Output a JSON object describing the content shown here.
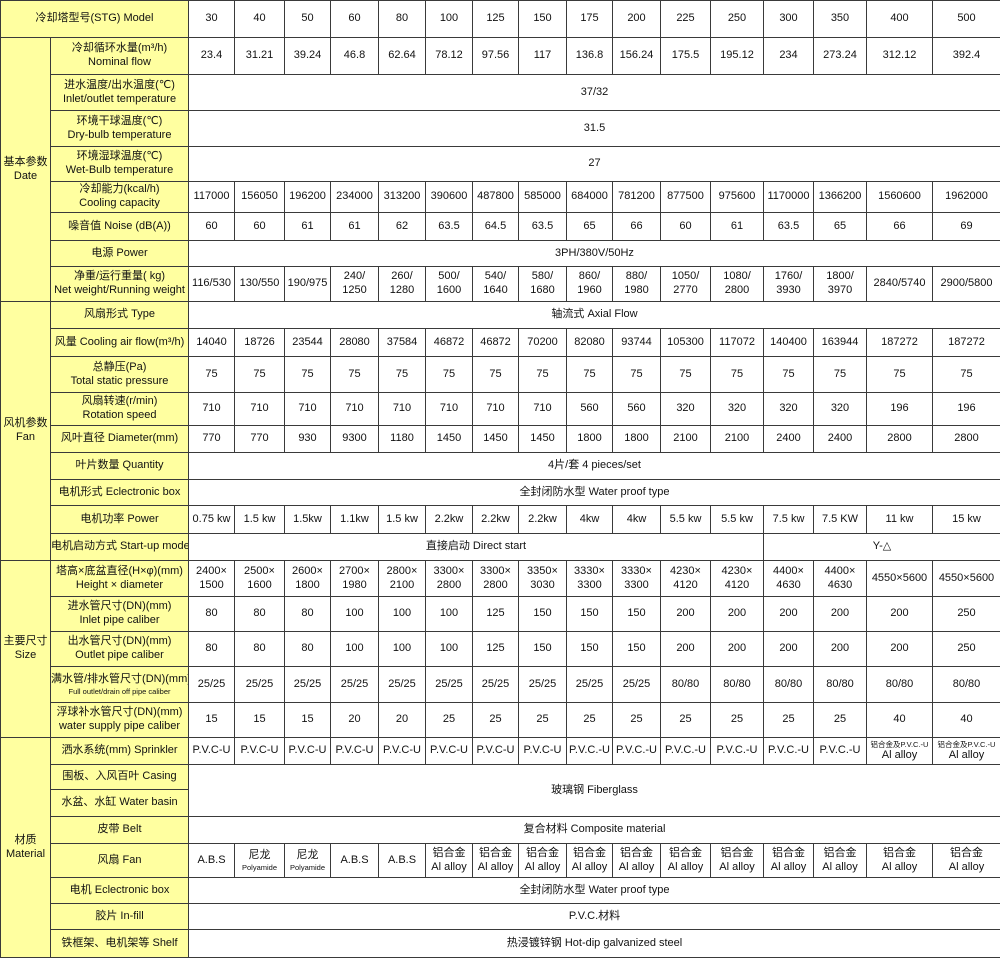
{
  "header": {
    "label": "冷却塔型号(STG) Model",
    "models": [
      "30",
      "40",
      "50",
      "60",
      "80",
      "100",
      "125",
      "150",
      "175",
      "200",
      "225",
      "250",
      "300",
      "350",
      "400",
      "500"
    ]
  },
  "colors": {
    "label_background": "#ffffa0",
    "border": "#3a3a3a"
  },
  "sections": [
    {
      "group": [
        "基本参数",
        "Date"
      ],
      "rows": [
        {
          "label": [
            "冷却循环水量(m³/h)",
            "Nominal flow"
          ],
          "values": [
            "23.4",
            "31.21",
            "39.24",
            "46.8",
            "62.64",
            "78.12",
            "97.56",
            "117",
            "136.8",
            "156.24",
            "175.5",
            "195.12",
            "234",
            "273.24",
            "312.12",
            "392.4"
          ]
        },
        {
          "label": [
            "进水温度/出水温度(℃)",
            "Inlet/outlet temperature"
          ],
          "spans": [
            {
              "text": "37/32",
              "colspan": 16
            }
          ]
        },
        {
          "label": [
            "环境干球温度(℃)",
            "Dry-bulb temperature"
          ],
          "spans": [
            {
              "text": "31.5",
              "colspan": 16
            }
          ]
        },
        {
          "label": [
            "环境湿球温度(℃)",
            "Wet-Bulb temperature"
          ],
          "spans": [
            {
              "text": "27",
              "colspan": 16
            }
          ]
        },
        {
          "label": [
            "冷却能力(kcal/h)",
            "Cooling capacity"
          ],
          "values": [
            "117000",
            "156050",
            "196200",
            "234000",
            "313200",
            "390600",
            "487800",
            "585000",
            "684000",
            "781200",
            "877500",
            "975600",
            "1170000",
            "1366200",
            "1560600",
            "1962000"
          ]
        },
        {
          "label": [
            "噪音值 Noise (dB(A))"
          ],
          "values": [
            "60",
            "60",
            "61",
            "61",
            "62",
            "63.5",
            "64.5",
            "63.5",
            "65",
            "66",
            "60",
            "61",
            "63.5",
            "65",
            "66",
            "69"
          ]
        },
        {
          "label": [
            "电源 Power"
          ],
          "spans": [
            {
              "text": "3PH/380V/50Hz",
              "colspan": 16
            }
          ]
        },
        {
          "label": [
            "净重/运行重量( kg)",
            "Net weight/Running weight"
          ],
          "values": [
            "116/530",
            "130/550",
            "190/975",
            [
              "240/",
              "1250"
            ],
            [
              "260/",
              "1280"
            ],
            [
              "500/",
              "1600"
            ],
            [
              "540/",
              "1640"
            ],
            [
              "580/",
              "1680"
            ],
            [
              "860/",
              "1960"
            ],
            [
              "880/",
              "1980"
            ],
            [
              "1050/",
              "2770"
            ],
            [
              "1080/",
              "2800"
            ],
            [
              "1760/",
              "3930"
            ],
            [
              "1800/",
              "3970"
            ],
            "2840/5740",
            "2900/5800"
          ]
        }
      ]
    },
    {
      "group": [
        "风机参数",
        "Fan"
      ],
      "rows": [
        {
          "label": [
            "风扇形式 Type"
          ],
          "spans": [
            {
              "text": "轴流式 Axial Flow",
              "colspan": 16
            }
          ]
        },
        {
          "label": [
            "风量 Cooling air flow(m³/h)"
          ],
          "values": [
            "14040",
            "18726",
            "23544",
            "28080",
            "37584",
            "46872",
            "46872",
            "70200",
            "82080",
            "93744",
            "105300",
            "117072",
            "140400",
            "163944",
            "187272",
            "187272"
          ]
        },
        {
          "label": [
            "总静压(Pa)",
            "Total static pressure"
          ],
          "values": [
            "75",
            "75",
            "75",
            "75",
            "75",
            "75",
            "75",
            "75",
            "75",
            "75",
            "75",
            "75",
            "75",
            "75",
            "75",
            "75"
          ]
        },
        {
          "label": [
            "风扇转速(r/min)",
            "Rotation speed"
          ],
          "values": [
            "710",
            "710",
            "710",
            "710",
            "710",
            "710",
            "710",
            "710",
            "560",
            "560",
            "320",
            "320",
            "320",
            "320",
            "196",
            "196"
          ]
        },
        {
          "label": [
            "风叶直径 Diameter(mm)"
          ],
          "values": [
            "770",
            "770",
            "930",
            "9300",
            "1180",
            "1450",
            "1450",
            "1450",
            "1800",
            "1800",
            "2100",
            "2100",
            "2400",
            "2400",
            "2800",
            "2800"
          ]
        },
        {
          "label": [
            "叶片数量 Quantity"
          ],
          "spans": [
            {
              "text": "4片/套 4 pieces/set",
              "colspan": 16
            }
          ]
        },
        {
          "label": [
            "电机形式 Eclectronic box"
          ],
          "spans": [
            {
              "text": "全封闭防水型 Water proof type",
              "colspan": 16
            }
          ]
        },
        {
          "label": [
            "电机功率 Power"
          ],
          "values": [
            "0.75 kw",
            "1.5 kw",
            "1.5kw",
            "1.1kw",
            "1.5 kw",
            "2.2kw",
            "2.2kw",
            "2.2kw",
            "4kw",
            "4kw",
            "5.5 kw",
            "5.5 kw",
            "7.5 kw",
            "7.5 KW",
            "11 kw",
            "15 kw"
          ]
        },
        {
          "label": [
            "电机启动方式 Start-up mode"
          ],
          "spans": [
            {
              "text": "直接启动 Direct start",
              "colspan": 12
            },
            {
              "text": "Y-△",
              "colspan": 4
            }
          ]
        }
      ]
    },
    {
      "group": [
        "主要尺寸",
        "Size"
      ],
      "rows": [
        {
          "label": [
            "塔高×底盆直径(H×φ)(mm)",
            "Height × diameter"
          ],
          "values": [
            [
              "2400×",
              "1500"
            ],
            [
              "2500×",
              "1600"
            ],
            [
              "2600×",
              "1800"
            ],
            [
              "2700×",
              "1980"
            ],
            [
              "2800×",
              "2100"
            ],
            [
              "3300×",
              "2800"
            ],
            [
              "3300×",
              "2800"
            ],
            [
              "3350×",
              "3030"
            ],
            [
              "3330×",
              "3300"
            ],
            [
              "3330×",
              "3300"
            ],
            [
              "4230×",
              "4120"
            ],
            [
              "4230×",
              "4120"
            ],
            [
              "4400×",
              "4630"
            ],
            [
              "4400×",
              "4630"
            ],
            "4550×5600",
            "4550×5600"
          ]
        },
        {
          "label": [
            "进水管尺寸(DN)(mm)",
            "Inlet pipe caliber"
          ],
          "values": [
            "80",
            "80",
            "80",
            "100",
            "100",
            "100",
            "125",
            "150",
            "150",
            "150",
            "200",
            "200",
            "200",
            "200",
            "200",
            "250"
          ]
        },
        {
          "label": [
            "出水管尺寸(DN)(mm)",
            "Outlet pipe caliber"
          ],
          "values": [
            "80",
            "80",
            "80",
            "100",
            "100",
            "100",
            "125",
            "150",
            "150",
            "150",
            "200",
            "200",
            "200",
            "200",
            "200",
            "250"
          ]
        },
        {
          "label": [
            "满水管/排水管尺寸(DN)(mm)",
            "Full outlet/drain off pipe caliber"
          ],
          "values": [
            "25/25",
            "25/25",
            "25/25",
            "25/25",
            "25/25",
            "25/25",
            "25/25",
            "25/25",
            "25/25",
            "25/25",
            "80/80",
            "80/80",
            "80/80",
            "80/80",
            "80/80",
            "80/80"
          ]
        },
        {
          "label": [
            "浮球补水管尺寸(DN)(mm)",
            "water supply pipe caliber"
          ],
          "values": [
            "15",
            "15",
            "15",
            "20",
            "20",
            "25",
            "25",
            "25",
            "25",
            "25",
            "25",
            "25",
            "25",
            "25",
            "40",
            "40"
          ]
        }
      ]
    },
    {
      "group": [
        "材质",
        "Material"
      ],
      "rows": [
        {
          "label": [
            "洒水系统(mm) Sprinkler"
          ],
          "values": [
            "P.V.C-U",
            "P.V.C-U",
            "P.V.C-U",
            "P.V.C-U",
            "P.V.C-U",
            "P.V.C-U",
            "P.V.C-U",
            "P.V.C-U",
            "P.V.C.-U",
            "P.V.C.-U",
            "P.V.C.-U",
            "P.V.C.-U",
            "P.V.C.-U",
            "P.V.C.-U",
            [
              "铝合金及P.V.C.-U",
              "Al alloy"
            ],
            [
              "铝合金及P.V.C.-U",
              "Al alloy"
            ]
          ]
        },
        {
          "label": [
            "围板、入风百叶 Casing"
          ],
          "spans": [
            {
              "text": "玻璃钢 Fiberglass",
              "colspan": 16,
              "rowspan": 2
            }
          ]
        },
        {
          "label": [
            "水盆、水缸 Water basin"
          ],
          "spans": []
        },
        {
          "label": [
            "皮带 Belt"
          ],
          "spans": [
            {
              "text": "复合材料 Composite material",
              "colspan": 16
            }
          ]
        },
        {
          "label": [
            "风扇 Fan"
          ],
          "values": [
            "A.B.S",
            [
              "尼龙",
              "Polyamide"
            ],
            [
              "尼龙",
              "Polyamide"
            ],
            "A.B.S",
            "A.B.S",
            [
              "铝合金",
              "Al alloy"
            ],
            [
              "铝合金",
              "Al alloy"
            ],
            [
              "铝合金",
              "Al alloy"
            ],
            [
              "铝合金",
              "Al alloy"
            ],
            [
              "铝合金",
              "Al alloy"
            ],
            [
              "铝合金",
              "Al alloy"
            ],
            [
              "铝合金",
              "Al alloy"
            ],
            [
              "铝合金",
              "Al alloy"
            ],
            [
              "铝合金",
              "Al alloy"
            ],
            [
              "铝合金",
              "Al alloy"
            ],
            [
              "铝合金",
              "Al alloy"
            ]
          ]
        },
        {
          "label": [
            "电机 Eclectronic box"
          ],
          "spans": [
            {
              "text": "全封闭防水型 Water proof type",
              "colspan": 16
            }
          ]
        },
        {
          "label": [
            "胶片 In-fill"
          ],
          "spans": [
            {
              "text": "P.V.C.材料",
              "colspan": 16
            }
          ]
        },
        {
          "label": [
            "铁框架、电机架等 Shelf"
          ],
          "spans": [
            {
              "text": "热浸镀锌钢 Hot-dip galvanized steel",
              "colspan": 16
            }
          ]
        }
      ]
    }
  ]
}
